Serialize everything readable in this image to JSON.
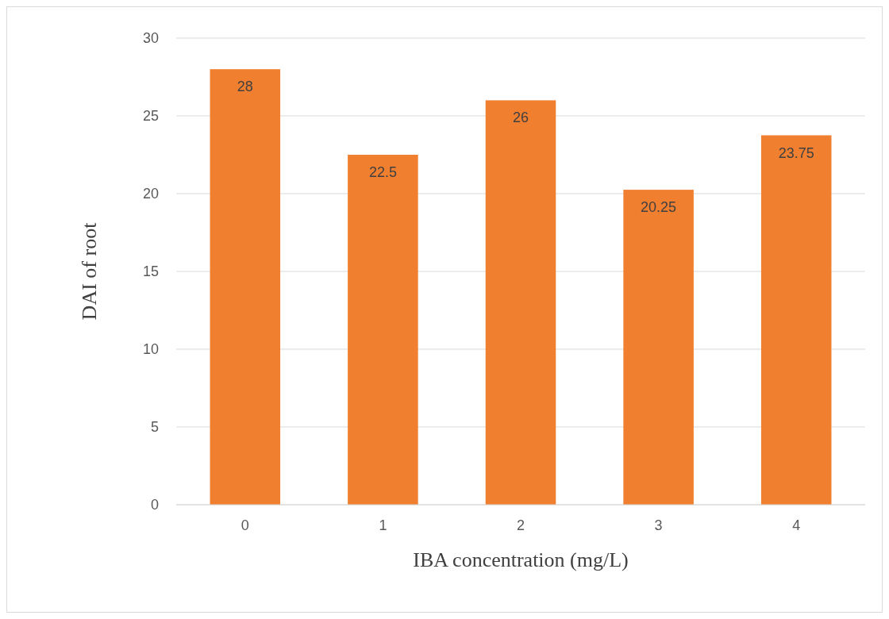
{
  "chart_data": {
    "type": "bar",
    "xlabel": "IBA concentration (mg/L)",
    "ylabel": "DAI of root",
    "categories": [
      "0",
      "1",
      "2",
      "3",
      "4"
    ],
    "values": [
      28,
      22.5,
      26,
      20.25,
      23.75
    ],
    "color": "#f07f2f",
    "ylim": [
      0,
      30
    ],
    "yticks": [
      0,
      5,
      10,
      15,
      20,
      25,
      30
    ],
    "grid": "y",
    "data_labels": true
  }
}
